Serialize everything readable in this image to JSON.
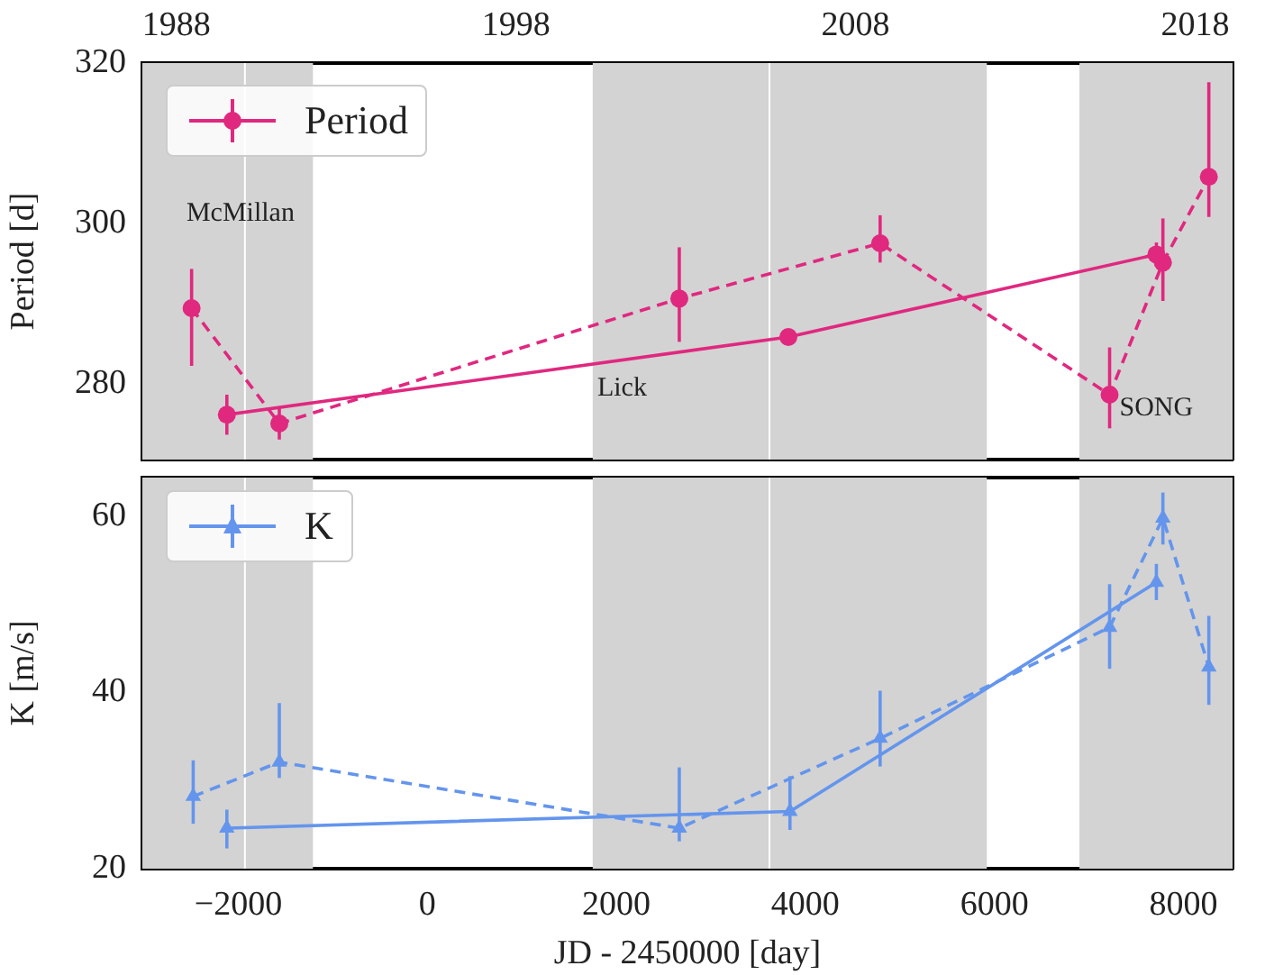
{
  "chart_data": [
    {
      "type": "line",
      "ylabel": "Period [d]",
      "xlim": [
        -3015,
        8520
      ],
      "xticks": [
        -2000,
        0,
        2000,
        4000,
        6000,
        8000
      ],
      "ylim": [
        270.5,
        320
      ],
      "yticks": [
        280,
        300,
        320
      ],
      "x2lim": [
        1987.0,
        2019.1
      ],
      "x2ticks": [
        1988,
        1998,
        2008,
        2018
      ],
      "tick_labels": "y",
      "marker": "circle",
      "legend": "top left",
      "bands": [
        {
          "axis": "x",
          "from": -3015,
          "to": -1210,
          "color": "#d3d3d3"
        },
        {
          "axis": "x",
          "from": 1750,
          "to": 5920,
          "color": "#d3d3d3"
        },
        {
          "axis": "x",
          "from": 6900,
          "to": 8520,
          "color": "#d3d3d3"
        }
      ],
      "ref_lines": [
        {
          "axis": "x",
          "value": -1930,
          "color": "#ffffff"
        },
        {
          "axis": "x",
          "value": 3620,
          "color": "#ffffff"
        }
      ],
      "annotations": [
        "McMillan",
        "Lick",
        "SONG"
      ],
      "series": [
        {
          "name": "Period",
          "color": "#e0287f",
          "line_style": "solid",
          "x": [
            -2121,
            3820,
            7714
          ],
          "values": [
            276.1,
            285.8,
            296.1
          ],
          "errors": [
            2.5,
            0.7,
            1.5
          ]
        },
        {
          "color": "#e0287f",
          "line_style": "dashed",
          "x": [
            -2494,
            -1566,
            2666,
            4791,
            7219,
            7783,
            8269
          ],
          "values": [
            289.4,
            275.0,
            290.6,
            297.5,
            278.6,
            295.1,
            305.8
          ],
          "errors": [
            [
              282.2,
              294.3
            ],
            [
              273.0,
              277.0
            ],
            [
              285.2,
              297.0
            ],
            [
              295.1,
              301.0
            ],
            [
              274.4,
              284.5
            ],
            [
              290.3,
              300.6
            ],
            [
              300.8,
              317.6
            ]
          ]
        }
      ]
    },
    {
      "type": "line",
      "xlabel": "JD - 2450000 [day]",
      "ylabel": "K [m/s]",
      "xlim": [
        -3015,
        8520
      ],
      "xticks": [
        -2000,
        0,
        2000,
        4000,
        6000,
        8000
      ],
      "ylim": [
        20,
        64.4
      ],
      "yticks": [
        20,
        40,
        60
      ],
      "marker": "triangle",
      "legend": "top left",
      "bands": [
        {
          "axis": "x",
          "from": -3015,
          "to": -1210,
          "color": "#d3d3d3"
        },
        {
          "axis": "x",
          "from": 1750,
          "to": 5920,
          "color": "#d3d3d3"
        },
        {
          "axis": "x",
          "from": 6900,
          "to": 8520,
          "color": "#d3d3d3"
        }
      ],
      "ref_lines": [
        {
          "axis": "x",
          "value": -1930,
          "color": "#ffffff"
        },
        {
          "axis": "x",
          "value": 3620,
          "color": "#ffffff"
        }
      ],
      "series": [
        {
          "name": "K",
          "color": "#6495ed",
          "line_style": "solid",
          "x": [
            -2121,
            3837,
            7714
          ],
          "values": [
            24.6,
            26.5,
            52.5
          ],
          "errors": [
            [
              22.3,
              26.7
            ],
            [
              24.4,
              30.5
            ],
            [
              50.5,
              54.6
            ]
          ]
        },
        {
          "color": "#6495ed",
          "line_style": "dashed",
          "x": [
            -2477,
            -1566,
            2666,
            4791,
            7219,
            7783,
            8269
          ],
          "values": [
            28.2,
            32.1,
            24.6,
            34.8,
            47.4,
            59.8,
            42.9
          ],
          "errors": [
            [
              25.1,
              32.3
            ],
            [
              30.3,
              38.8
            ],
            [
              23.1,
              31.5
            ],
            [
              31.6,
              40.2
            ],
            [
              42.7,
              52.3
            ],
            [
              56.8,
              62.7
            ],
            [
              38.6,
              48.7
            ]
          ]
        }
      ]
    }
  ]
}
